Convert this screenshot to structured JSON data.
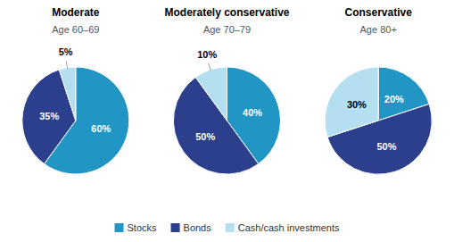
{
  "chart_data": [
    {
      "type": "pie",
      "title": "Moderate",
      "subtitle": "Age 60–69",
      "categories": [
        "Stocks",
        "Bonds",
        "Cash/cash investments"
      ],
      "values": [
        60,
        35,
        5
      ],
      "value_labels": [
        "60%",
        "35%",
        "5%"
      ],
      "colors": [
        "#2196c4",
        "#2b3f8c",
        "#b3dff0"
      ],
      "data_labels": true
    },
    {
      "type": "pie",
      "title": "Moderately conservative",
      "subtitle": "Age 70–79",
      "categories": [
        "Stocks",
        "Bonds",
        "Cash/cash investments"
      ],
      "values": [
        40,
        50,
        10
      ],
      "value_labels": [
        "40%",
        "50%",
        "10%"
      ],
      "colors": [
        "#2196c4",
        "#2b3f8c",
        "#b3dff0"
      ],
      "data_labels": true
    },
    {
      "type": "pie",
      "title": "Conservative",
      "subtitle": "Age 80+",
      "categories": [
        "Stocks",
        "Bonds",
        "Cash/cash investments"
      ],
      "values": [
        20,
        50,
        30
      ],
      "value_labels": [
        "20%",
        "50%",
        "30%"
      ],
      "colors": [
        "#2196c4",
        "#2b3f8c",
        "#b3dff0"
      ],
      "data_labels": true
    }
  ]
}
